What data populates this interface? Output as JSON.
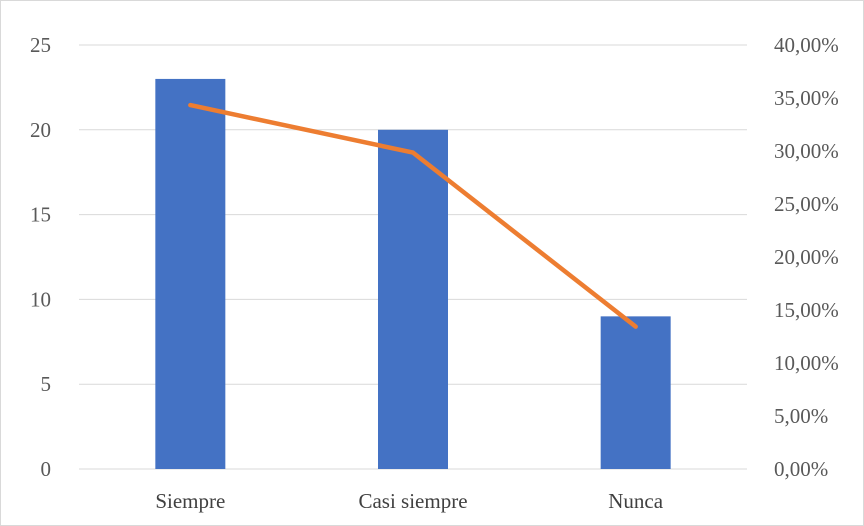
{
  "chart_data": {
    "type": "bar",
    "categories": [
      "Siempre",
      "Casi siempre",
      "Nunca"
    ],
    "series": [
      {
        "type": "bar",
        "axis": "left",
        "values": [
          23,
          20,
          9
        ],
        "color": "#4472c4"
      },
      {
        "type": "line",
        "axis": "right",
        "values": [
          0.3433,
          0.2985,
          0.1343
        ],
        "color": "#ed7d31"
      }
    ],
    "ylim": [
      0,
      25
    ],
    "y_ticks": [
      "0",
      "5",
      "10",
      "15",
      "20",
      "25"
    ],
    "y2lim": [
      0,
      0.4
    ],
    "y2_ticks": [
      "0,00%",
      "5,00%",
      "10,00%",
      "15,00%",
      "20,00%",
      "25,00%",
      "30,00%",
      "35,00%",
      "40,00%"
    ],
    "grid": true,
    "legend": "none",
    "title": "",
    "xlabel": "",
    "ylabel": ""
  }
}
